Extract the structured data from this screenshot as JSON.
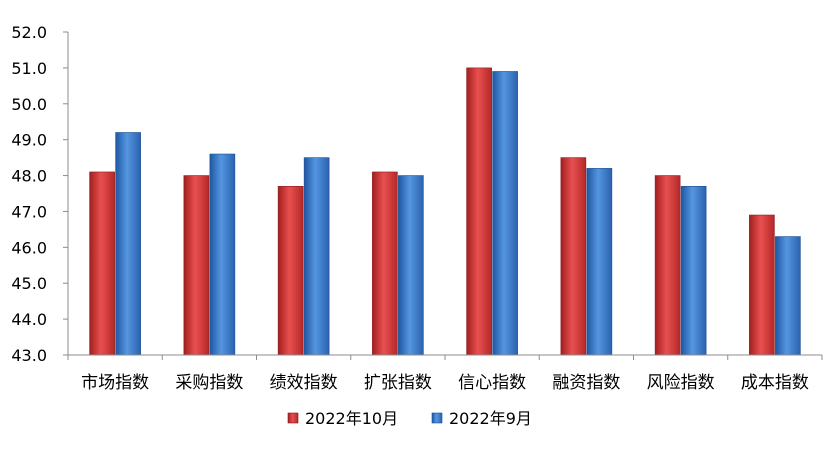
{
  "chart_data": {
    "type": "bar",
    "title": "",
    "xlabel": "",
    "ylabel": "",
    "categories": [
      "市场指数",
      "采购指数",
      "绩效指数",
      "扩张指数",
      "信心指数",
      "融资指数",
      "风险指数",
      "成本指数"
    ],
    "series": [
      {
        "name": "2022年10月",
        "color": "#d93a3a",
        "values": [
          48.1,
          48.0,
          47.7,
          48.1,
          51.0,
          48.5,
          48.0,
          46.9
        ]
      },
      {
        "name": "2022年9月",
        "color": "#3f7fd0",
        "values": [
          49.2,
          48.6,
          48.5,
          48.0,
          50.9,
          48.2,
          47.7,
          46.3
        ]
      }
    ],
    "ylim": [
      43.0,
      52.0
    ],
    "yticks": [
      "43.0",
      "44.0",
      "45.0",
      "46.0",
      "47.0",
      "48.0",
      "49.0",
      "50.0",
      "51.0",
      "52.0"
    ],
    "grid": false,
    "legend_position": "bottom-center"
  }
}
